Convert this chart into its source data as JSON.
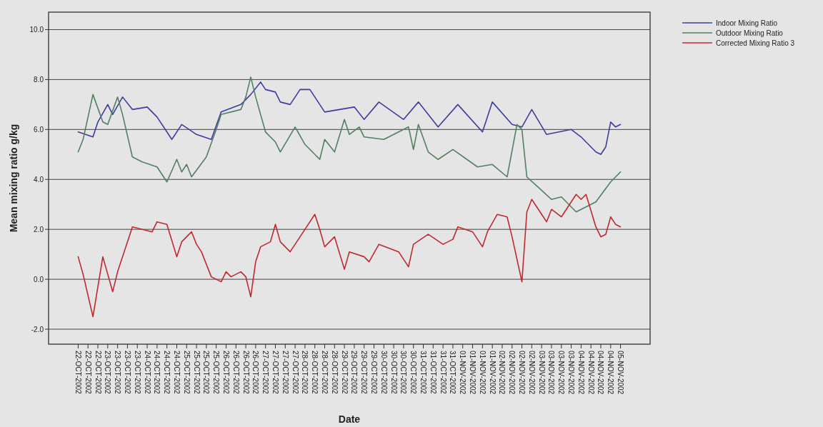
{
  "chart_data": {
    "type": "line",
    "xlabel": "Date",
    "ylabel": "Mean mixing ratio g/kg",
    "grid": "y",
    "legend": "top right",
    "line_style": "solid",
    "xlim": [
      "2002-10-21T12:00",
      "2002-11-05T18:00"
    ],
    "ylim": [
      -2.6,
      10.7
    ],
    "yticks": [
      {
        "value": -2,
        "label": "-2.0"
      },
      {
        "value": 0,
        "label": "0.0"
      },
      {
        "value": 2,
        "label": "2.0"
      },
      {
        "value": 4,
        "label": "4.0"
      },
      {
        "value": 6,
        "label": "6.0"
      },
      {
        "value": 8,
        "label": "8.0"
      },
      {
        "value": 10,
        "label": "10.0"
      }
    ],
    "xticks": [
      {
        "value": "2002-10-22T06:00",
        "label": "22-OCT-2002"
      },
      {
        "value": "2002-10-22T12:00",
        "label": "22-OCT-2002"
      },
      {
        "value": "2002-10-22T18:00",
        "label": "22-OCT-2002"
      },
      {
        "value": "2002-10-23T00:00",
        "label": "23-OCT-2002"
      },
      {
        "value": "2002-10-23T06:00",
        "label": "23-OCT-2002"
      },
      {
        "value": "2002-10-23T12:00",
        "label": "23-OCT-2002"
      },
      {
        "value": "2002-10-23T18:00",
        "label": "23-OCT-2002"
      },
      {
        "value": "2002-10-24T00:00",
        "label": "24-OCT-2002"
      },
      {
        "value": "2002-10-24T06:00",
        "label": "24-OCT-2002"
      },
      {
        "value": "2002-10-24T12:00",
        "label": "24-OCT-2002"
      },
      {
        "value": "2002-10-24T18:00",
        "label": "24-OCT-2002"
      },
      {
        "value": "2002-10-25T00:00",
        "label": "25-OCT-2002"
      },
      {
        "value": "2002-10-25T06:00",
        "label": "25-OCT-2002"
      },
      {
        "value": "2002-10-25T12:00",
        "label": "25-OCT-2002"
      },
      {
        "value": "2002-10-25T18:00",
        "label": "25-OCT-2002"
      },
      {
        "value": "2002-10-26T00:00",
        "label": "26-OCT-2002"
      },
      {
        "value": "2002-10-26T06:00",
        "label": "26-OCT-2002"
      },
      {
        "value": "2002-10-26T12:00",
        "label": "26-OCT-2002"
      },
      {
        "value": "2002-10-26T18:00",
        "label": "26-OCT-2002"
      },
      {
        "value": "2002-10-27T00:00",
        "label": "27-OCT-2002"
      },
      {
        "value": "2002-10-27T06:00",
        "label": "27-OCT-2002"
      },
      {
        "value": "2002-10-27T12:00",
        "label": "27-OCT-2002"
      },
      {
        "value": "2002-10-27T18:00",
        "label": "27-OCT-2002"
      },
      {
        "value": "2002-10-28T00:00",
        "label": "28-OCT-2002"
      },
      {
        "value": "2002-10-28T06:00",
        "label": "28-OCT-2002"
      },
      {
        "value": "2002-10-28T12:00",
        "label": "28-OCT-2002"
      },
      {
        "value": "2002-10-28T18:00",
        "label": "28-OCT-2002"
      },
      {
        "value": "2002-10-29T00:00",
        "label": "29-OCT-2002"
      },
      {
        "value": "2002-10-29T06:00",
        "label": "29-OCT-2002"
      },
      {
        "value": "2002-10-29T12:00",
        "label": "29-OCT-2002"
      },
      {
        "value": "2002-10-29T18:00",
        "label": "29-OCT-2002"
      },
      {
        "value": "2002-10-30T00:00",
        "label": "30-OCT-2002"
      },
      {
        "value": "2002-10-30T06:00",
        "label": "30-OCT-2002"
      },
      {
        "value": "2002-10-30T12:00",
        "label": "30-OCT-2002"
      },
      {
        "value": "2002-10-30T18:00",
        "label": "30-OCT-2002"
      },
      {
        "value": "2002-10-31T00:00",
        "label": "31-OCT-2002"
      },
      {
        "value": "2002-10-31T06:00",
        "label": "31-OCT-2002"
      },
      {
        "value": "2002-10-31T12:00",
        "label": "31-OCT-2002"
      },
      {
        "value": "2002-10-31T18:00",
        "label": "31-OCT-2002"
      },
      {
        "value": "2002-11-01T00:00",
        "label": "01-NOV-2002"
      },
      {
        "value": "2002-11-01T06:00",
        "label": "01-NOV-2002"
      },
      {
        "value": "2002-11-01T12:00",
        "label": "01-NOV-2002"
      },
      {
        "value": "2002-11-01T18:00",
        "label": "01-NOV-2002"
      },
      {
        "value": "2002-11-02T00:00",
        "label": "02-NOV-2002"
      },
      {
        "value": "2002-11-02T06:00",
        "label": "02-NOV-2002"
      },
      {
        "value": "2002-11-02T12:00",
        "label": "02-NOV-2002"
      },
      {
        "value": "2002-11-02T18:00",
        "label": "02-NOV-2002"
      },
      {
        "value": "2002-11-03T00:00",
        "label": "03-NOV-2002"
      },
      {
        "value": "2002-11-03T06:00",
        "label": "03-NOV-2002"
      },
      {
        "value": "2002-11-03T12:00",
        "label": "03-NOV-2002"
      },
      {
        "value": "2002-11-03T18:00",
        "label": "03-NOV-2002"
      },
      {
        "value": "2002-11-04T00:00",
        "label": "04-NOV-2002"
      },
      {
        "value": "2002-11-04T06:00",
        "label": "04-NOV-2002"
      },
      {
        "value": "2002-11-04T12:00",
        "label": "04-NOV-2002"
      },
      {
        "value": "2002-11-04T18:00",
        "label": "04-NOV-2002"
      },
      {
        "value": "2002-11-05T00:00",
        "label": "05-NOV-2002"
      }
    ],
    "series": [
      {
        "name": "Indoor Mixing Ratio",
        "color": "#3c3ca0",
        "x": [
          "2002-10-22T06:00",
          "2002-10-22T15:00",
          "2002-10-22T18:00",
          "2002-10-23T00:00",
          "2002-10-23T03:00",
          "2002-10-23T09:00",
          "2002-10-23T15:00",
          "2002-10-24T00:00",
          "2002-10-24T06:00",
          "2002-10-24T15:00",
          "2002-10-24T21:00",
          "2002-10-25T06:00",
          "2002-10-25T15:00",
          "2002-10-25T21:00",
          "2002-10-26T09:00",
          "2002-10-26T15:00",
          "2002-10-26T21:00",
          "2002-10-27T00:00",
          "2002-10-27T06:00",
          "2002-10-27T09:00",
          "2002-10-27T15:00",
          "2002-10-27T21:00",
          "2002-10-28T03:00",
          "2002-10-28T12:00",
          "2002-10-28T21:00",
          "2002-10-29T06:00",
          "2002-10-29T12:00",
          "2002-10-29T21:00",
          "2002-10-30T12:00",
          "2002-10-30T21:00",
          "2002-10-31T09:00",
          "2002-10-31T21:00",
          "2002-11-01T12:00",
          "2002-11-01T18:00",
          "2002-11-02T06:00",
          "2002-11-02T12:00",
          "2002-11-02T18:00",
          "2002-11-03T03:00",
          "2002-11-03T18:00",
          "2002-11-04T00:00",
          "2002-11-04T09:00",
          "2002-11-04T12:00",
          "2002-11-04T15:00",
          "2002-11-04T18:00",
          "2002-11-04T21:00",
          "2002-11-05T00:00"
        ],
        "values": [
          5.9,
          5.7,
          6.3,
          7.0,
          6.6,
          7.3,
          6.8,
          6.9,
          6.5,
          5.6,
          6.2,
          5.8,
          5.6,
          6.7,
          7.0,
          7.4,
          7.9,
          7.6,
          7.5,
          7.1,
          7.0,
          7.6,
          7.6,
          6.7,
          6.8,
          6.9,
          6.4,
          7.1,
          6.4,
          7.1,
          6.1,
          7.0,
          5.9,
          7.1,
          6.2,
          6.1,
          6.8,
          5.8,
          6.0,
          5.7,
          5.1,
          5.0,
          5.3,
          6.3,
          6.1,
          6.2
        ]
      },
      {
        "name": "Outdoor Mixing Ratio",
        "color": "#4f8060",
        "x": [
          "2002-10-22T06:00",
          "2002-10-22T09:00",
          "2002-10-22T15:00",
          "2002-10-22T21:00",
          "2002-10-23T00:00",
          "2002-10-23T06:00",
          "2002-10-23T09:00",
          "2002-10-23T15:00",
          "2002-10-23T21:00",
          "2002-10-24T06:00",
          "2002-10-24T12:00",
          "2002-10-24T18:00",
          "2002-10-24T21:00",
          "2002-10-25T00:00",
          "2002-10-25T03:00",
          "2002-10-25T12:00",
          "2002-10-25T18:00",
          "2002-10-25T21:00",
          "2002-10-26T09:00",
          "2002-10-26T12:00",
          "2002-10-26T15:00",
          "2002-10-26T18:00",
          "2002-10-26T21:00",
          "2002-10-27T00:00",
          "2002-10-27T06:00",
          "2002-10-27T09:00",
          "2002-10-27T18:00",
          "2002-10-28T00:00",
          "2002-10-28T09:00",
          "2002-10-28T12:00",
          "2002-10-28T18:00",
          "2002-10-29T00:00",
          "2002-10-29T03:00",
          "2002-10-29T09:00",
          "2002-10-29T12:00",
          "2002-10-30T00:00",
          "2002-10-30T15:00",
          "2002-10-30T18:00",
          "2002-10-30T21:00",
          "2002-10-31T03:00",
          "2002-10-31T09:00",
          "2002-10-31T18:00",
          "2002-11-01T09:00",
          "2002-11-01T18:00",
          "2002-11-02T03:00",
          "2002-11-02T09:00",
          "2002-11-02T12:00",
          "2002-11-02T15:00",
          "2002-11-03T06:00",
          "2002-11-03T12:00",
          "2002-11-03T21:00",
          "2002-11-04T09:00",
          "2002-11-04T18:00",
          "2002-11-05T00:00"
        ],
        "values": [
          5.1,
          5.6,
          7.4,
          6.3,
          6.2,
          7.3,
          6.6,
          4.9,
          4.7,
          4.5,
          3.9,
          4.8,
          4.3,
          4.6,
          4.1,
          4.9,
          6.0,
          6.6,
          6.8,
          7.3,
          8.1,
          7.3,
          6.6,
          5.9,
          5.5,
          5.1,
          6.1,
          5.4,
          4.8,
          5.6,
          5.1,
          6.4,
          5.8,
          6.1,
          5.7,
          5.6,
          6.1,
          5.2,
          6.2,
          5.1,
          4.8,
          5.2,
          4.5,
          4.6,
          4.1,
          6.2,
          6.0,
          4.1,
          3.2,
          3.3,
          2.7,
          3.1,
          3.9,
          4.3
        ]
      },
      {
        "name": "Corrected Mixing Ratio 3",
        "color": "#c0282e",
        "x": [
          "2002-10-22T06:00",
          "2002-10-22T09:00",
          "2002-10-22T15:00",
          "2002-10-22T21:00",
          "2002-10-23T03:00",
          "2002-10-23T06:00",
          "2002-10-23T15:00",
          "2002-10-23T21:00",
          "2002-10-24T03:00",
          "2002-10-24T06:00",
          "2002-10-24T12:00",
          "2002-10-24T18:00",
          "2002-10-24T21:00",
          "2002-10-25T03:00",
          "2002-10-25T06:00",
          "2002-10-25T09:00",
          "2002-10-25T15:00",
          "2002-10-25T21:00",
          "2002-10-26T00:00",
          "2002-10-26T03:00",
          "2002-10-26T09:00",
          "2002-10-26T12:00",
          "2002-10-26T15:00",
          "2002-10-26T18:00",
          "2002-10-26T21:00",
          "2002-10-27T03:00",
          "2002-10-27T06:00",
          "2002-10-27T09:00",
          "2002-10-27T15:00",
          "2002-10-27T21:00",
          "2002-10-28T00:00",
          "2002-10-28T06:00",
          "2002-10-28T09:00",
          "2002-10-28T12:00",
          "2002-10-28T18:00",
          "2002-10-29T00:00",
          "2002-10-29T03:00",
          "2002-10-29T12:00",
          "2002-10-29T15:00",
          "2002-10-29T21:00",
          "2002-10-30T09:00",
          "2002-10-30T15:00",
          "2002-10-30T18:00",
          "2002-10-31T03:00",
          "2002-10-31T12:00",
          "2002-10-31T18:00",
          "2002-10-31T21:00",
          "2002-11-01T06:00",
          "2002-11-01T12:00",
          "2002-11-01T15:00",
          "2002-11-01T21:00",
          "2002-11-02T03:00",
          "2002-11-02T06:00",
          "2002-11-02T12:00",
          "2002-11-02T15:00",
          "2002-11-02T18:00",
          "2002-11-03T03:00",
          "2002-11-03T06:00",
          "2002-11-03T12:00",
          "2002-11-03T15:00",
          "2002-11-03T21:00",
          "2002-11-04T00:00",
          "2002-11-04T03:00",
          "2002-11-04T09:00",
          "2002-11-04T12:00",
          "2002-11-04T15:00",
          "2002-11-04T18:00",
          "2002-11-04T21:00",
          "2002-11-05T00:00"
        ],
        "values": [
          0.9,
          0.2,
          -1.5,
          0.9,
          -0.5,
          0.3,
          2.1,
          2.0,
          1.9,
          2.3,
          2.2,
          0.9,
          1.5,
          1.9,
          1.4,
          1.1,
          0.1,
          -0.1,
          0.3,
          0.1,
          0.3,
          0.1,
          -0.7,
          0.7,
          1.3,
          1.5,
          2.2,
          1.5,
          1.1,
          1.7,
          2.0,
          2.6,
          2.0,
          1.3,
          1.7,
          0.4,
          1.1,
          0.9,
          0.7,
          1.4,
          1.1,
          0.5,
          1.4,
          1.8,
          1.4,
          1.6,
          2.1,
          1.9,
          1.3,
          1.9,
          2.6,
          2.5,
          1.7,
          -0.1,
          2.7,
          3.2,
          2.3,
          2.8,
          2.5,
          2.8,
          3.4,
          3.2,
          3.4,
          2.1,
          1.7,
          1.8,
          2.5,
          2.2,
          2.1
        ]
      }
    ]
  }
}
